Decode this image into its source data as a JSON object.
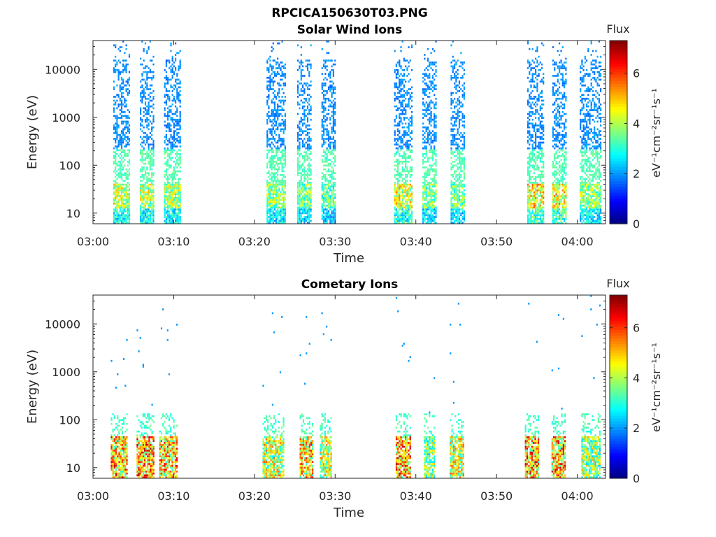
{
  "figure": {
    "main_title": "RPCICA150630T03.PNG",
    "colormap": "jet"
  },
  "chart_data": [
    {
      "type": "heatmap",
      "title": "Solar Wind Ions",
      "xlabel": "Time",
      "ylabel": "Energy (eV)",
      "xticks": [
        "03:00",
        "03:10",
        "03:20",
        "03:30",
        "03:40",
        "03:50",
        "04:00"
      ],
      "xlim_minutes": [
        0,
        63.5
      ],
      "yscale": "log",
      "ylim": [
        6,
        40000
      ],
      "yticks": [
        "10",
        "100",
        "1000",
        "10000"
      ],
      "colorbar": {
        "title": "Flux",
        "label": "eV⁻¹cm⁻²sr⁻¹s⁻¹",
        "range": [
          0,
          7.3
        ],
        "ticks": [
          "0",
          "2",
          "4",
          "6"
        ]
      },
      "bursts": [
        {
          "start_min": 2.5,
          "end_min": 4.6,
          "peak_flux": 5.2
        },
        {
          "start_min": 5.8,
          "end_min": 7.6,
          "peak_flux": 5.2
        },
        {
          "start_min": 8.8,
          "end_min": 10.9,
          "peak_flux": 5.0
        },
        {
          "start_min": 21.5,
          "end_min": 23.9,
          "peak_flux": 4.8
        },
        {
          "start_min": 25.3,
          "end_min": 27.1,
          "peak_flux": 4.6
        },
        {
          "start_min": 28.3,
          "end_min": 30.1,
          "peak_flux": 4.2
        },
        {
          "start_min": 37.3,
          "end_min": 39.6,
          "peak_flux": 5.5
        },
        {
          "start_min": 40.8,
          "end_min": 42.6,
          "peak_flux": 4.6
        },
        {
          "start_min": 44.3,
          "end_min": 46.1,
          "peak_flux": 4.6
        },
        {
          "start_min": 53.8,
          "end_min": 55.9,
          "peak_flux": 5.8
        },
        {
          "start_min": 56.9,
          "end_min": 58.7,
          "peak_flux": 5.8
        },
        {
          "start_min": 60.3,
          "end_min": 63.0,
          "peak_flux": 4.8
        }
      ]
    },
    {
      "type": "heatmap",
      "title": "Cometary Ions",
      "xlabel": "Time",
      "ylabel": "Energy (eV)",
      "xticks": [
        "03:00",
        "03:10",
        "03:20",
        "03:30",
        "03:40",
        "03:50",
        "04:00"
      ],
      "xlim_minutes": [
        0,
        63.5
      ],
      "yscale": "log",
      "ylim": [
        6,
        40000
      ],
      "yticks": [
        "10",
        "100",
        "1000",
        "10000"
      ],
      "colorbar": {
        "title": "Flux",
        "label": "eV⁻¹cm⁻²sr⁻¹s⁻¹",
        "range": [
          0,
          7.3
        ],
        "ticks": [
          "0",
          "2",
          "4",
          "6"
        ]
      },
      "bursts": [
        {
          "start_min": 2.2,
          "end_min": 4.3,
          "peak_flux": 6.8
        },
        {
          "start_min": 5.4,
          "end_min": 7.6,
          "peak_flux": 7.0
        },
        {
          "start_min": 8.2,
          "end_min": 10.5,
          "peak_flux": 6.6
        },
        {
          "start_min": 21.0,
          "end_min": 23.7,
          "peak_flux": 5.8
        },
        {
          "start_min": 25.6,
          "end_min": 27.3,
          "peak_flux": 6.4
        },
        {
          "start_min": 28.1,
          "end_min": 29.6,
          "peak_flux": 5.6
        },
        {
          "start_min": 37.5,
          "end_min": 39.4,
          "peak_flux": 6.9
        },
        {
          "start_min": 41.0,
          "end_min": 42.4,
          "peak_flux": 5.0
        },
        {
          "start_min": 44.2,
          "end_min": 46.0,
          "peak_flux": 5.8
        },
        {
          "start_min": 53.5,
          "end_min": 55.3,
          "peak_flux": 7.0
        },
        {
          "start_min": 56.8,
          "end_min": 58.6,
          "peak_flux": 6.8
        },
        {
          "start_min": 60.5,
          "end_min": 62.9,
          "peak_flux": 5.2
        }
      ]
    }
  ]
}
